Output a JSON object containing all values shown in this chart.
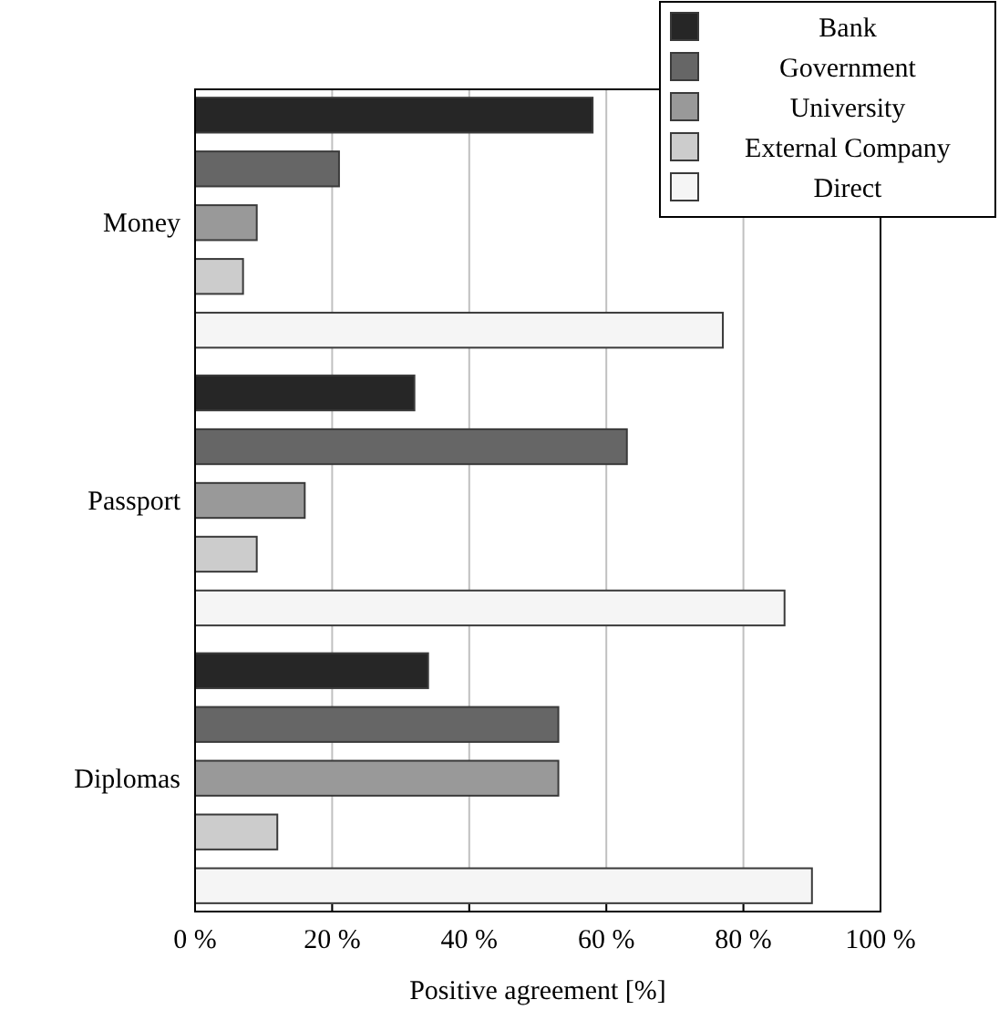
{
  "chart_data": {
    "type": "bar",
    "orientation": "horizontal",
    "xlabel": "Positive agreement [%]",
    "categories": [
      "Money",
      "Passport",
      "Diplomas"
    ],
    "series": [
      {
        "name": "Bank",
        "color": "#262626",
        "values": [
          58,
          32,
          34
        ]
      },
      {
        "name": "Government",
        "color": "#666666",
        "values": [
          21,
          63,
          53
        ]
      },
      {
        "name": "University",
        "color": "#999999",
        "values": [
          9,
          16,
          53
        ]
      },
      {
        "name": "External Company",
        "color": "#cccccc",
        "values": [
          7,
          9,
          12
        ]
      },
      {
        "name": "Direct",
        "color": "#f5f5f5",
        "values": [
          77,
          86,
          90
        ]
      }
    ],
    "xlim": [
      0,
      100
    ],
    "xticks": [
      {
        "value": 0,
        "label": "0 %"
      },
      {
        "value": 20,
        "label": "20 %"
      },
      {
        "value": 40,
        "label": "40 %"
      },
      {
        "value": 60,
        "label": "60 %"
      },
      {
        "value": 80,
        "label": "80 %"
      },
      {
        "value": 100,
        "label": "100 %"
      }
    ],
    "grid": "x",
    "legend": "top right"
  }
}
